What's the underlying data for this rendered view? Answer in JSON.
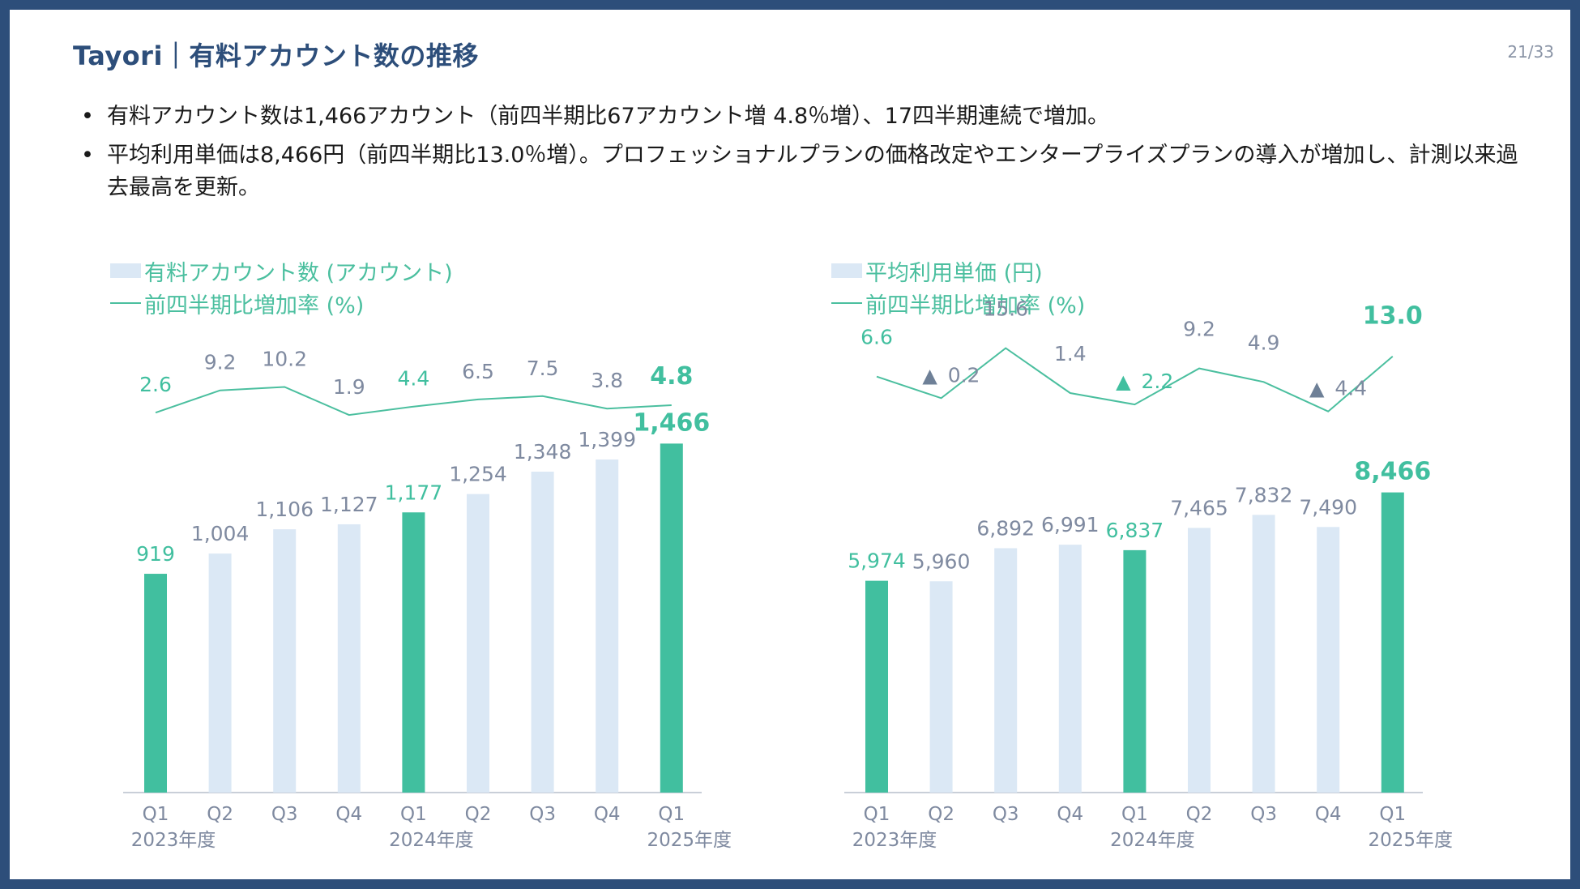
{
  "header": {
    "title": "Tayori｜有料アカウント数の推移",
    "page_num": "21/33"
  },
  "bullets": [
    "有料アカウント数は1,466アカウント（前四半期比67アカウント増 4.8％増）、17四半期連続で増加。",
    "平均利用単価は8,466円（前四半期比13.0％増）。プロフェッショナルプランの価格改定やエンタープライズプランの導入が増加し、計測以来過去最高を更新。"
  ],
  "colors": {
    "bar_light": "#dbe8f5",
    "bar_accent": "#41bf9f",
    "line": "#4bbf9f",
    "label_gray": "#7f8aa0",
    "neg_marker": "#6e8097"
  },
  "chart_data": [
    {
      "type": "bar",
      "legend": {
        "bar": "有料アカウント数 (アカウント)",
        "line": "前四半期比増加率 (%)"
      },
      "categories": [
        "Q1",
        "Q2",
        "Q3",
        "Q4",
        "Q1",
        "Q2",
        "Q3",
        "Q4",
        "Q1"
      ],
      "years": [
        {
          "label": "2023年度",
          "index": 0
        },
        {
          "label": "2024年度",
          "index": 4
        },
        {
          "label": "2025年度",
          "index": 8
        }
      ],
      "values": [
        919,
        1004,
        1106,
        1127,
        1177,
        1254,
        1348,
        1399,
        1466
      ],
      "value_labels": [
        "919",
        "1,004",
        "1,106",
        "1,127",
        "1,177",
        "1,254",
        "1,348",
        "1,399",
        "1,466"
      ],
      "highlight": [
        0,
        4,
        8
      ],
      "ylim": [
        0,
        1600
      ],
      "growth": {
        "values": [
          2.6,
          9.2,
          10.2,
          1.9,
          4.4,
          6.5,
          7.5,
          3.8,
          4.8
        ],
        "labels": [
          "2.6",
          "9.2",
          "10.2",
          "1.9",
          "4.4",
          "6.5",
          "7.5",
          "3.8",
          "4.8"
        ]
      }
    },
    {
      "type": "bar",
      "legend": {
        "bar": "平均利用単価 (円)",
        "line": "前四半期比増加率 (%)"
      },
      "categories": [
        "Q1",
        "Q2",
        "Q3",
        "Q4",
        "Q1",
        "Q2",
        "Q3",
        "Q4",
        "Q1"
      ],
      "years": [
        {
          "label": "2023年度",
          "index": 0
        },
        {
          "label": "2024年度",
          "index": 4
        },
        {
          "label": "2025年度",
          "index": 8
        }
      ],
      "values": [
        5974,
        5960,
        6892,
        6991,
        6837,
        7465,
        7832,
        7490,
        8466
      ],
      "value_labels": [
        "5,974",
        "5,960",
        "6,892",
        "6,991",
        "6,837",
        "7,465",
        "7,832",
        "7,490",
        "8,466"
      ],
      "highlight": [
        0,
        4,
        8
      ],
      "ylim": [
        0,
        9600
      ],
      "growth": {
        "values": [
          6.6,
          -0.2,
          15.6,
          1.4,
          -2.2,
          9.2,
          4.9,
          -4.4,
          13.0
        ],
        "labels": [
          "6.6",
          "0.2",
          "15.6",
          "1.4",
          "2.2",
          "9.2",
          "4.9",
          "4.4",
          "13.0"
        ],
        "negative_marker": "▲"
      }
    }
  ]
}
